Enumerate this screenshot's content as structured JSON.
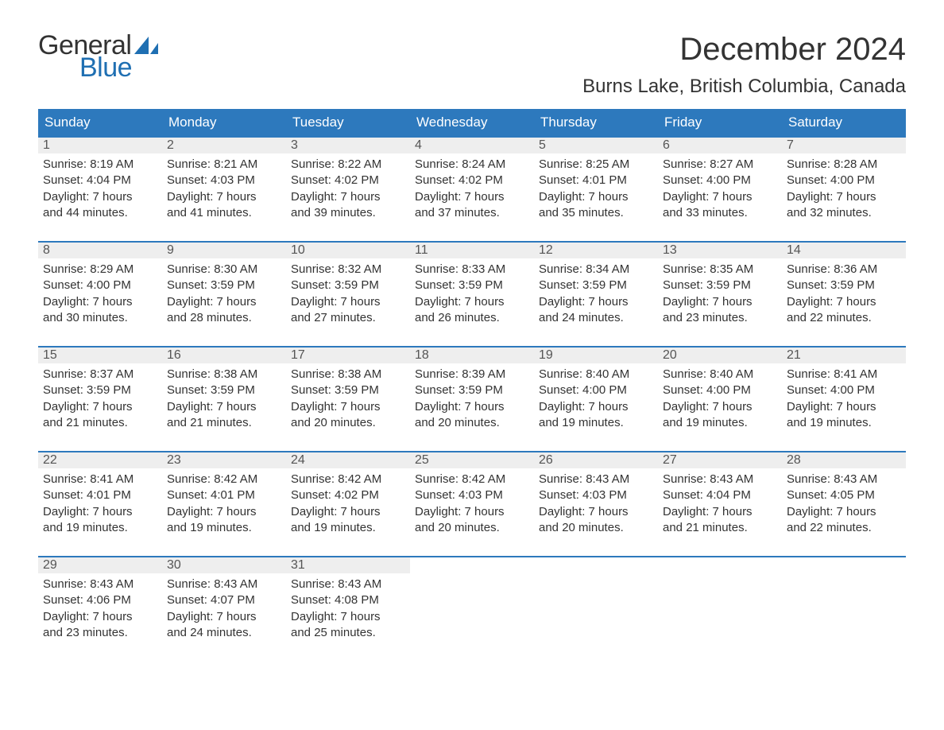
{
  "logo": {
    "word1": "General",
    "word2": "Blue",
    "text_color": "#333333",
    "accent_color": "#1f6fb2"
  },
  "title": "December 2024",
  "location": "Burns Lake, British Columbia, Canada",
  "header_bg": "#2d79bd",
  "header_fg": "#ffffff",
  "daynum_bg": "#eeeeee",
  "weekdays": [
    "Sunday",
    "Monday",
    "Tuesday",
    "Wednesday",
    "Thursday",
    "Friday",
    "Saturday"
  ],
  "weeks": [
    [
      {
        "n": "1",
        "sunrise": "8:19 AM",
        "sunset": "4:04 PM",
        "dh": "7",
        "dm": "44"
      },
      {
        "n": "2",
        "sunrise": "8:21 AM",
        "sunset": "4:03 PM",
        "dh": "7",
        "dm": "41"
      },
      {
        "n": "3",
        "sunrise": "8:22 AM",
        "sunset": "4:02 PM",
        "dh": "7",
        "dm": "39"
      },
      {
        "n": "4",
        "sunrise": "8:24 AM",
        "sunset": "4:02 PM",
        "dh": "7",
        "dm": "37"
      },
      {
        "n": "5",
        "sunrise": "8:25 AM",
        "sunset": "4:01 PM",
        "dh": "7",
        "dm": "35"
      },
      {
        "n": "6",
        "sunrise": "8:27 AM",
        "sunset": "4:00 PM",
        "dh": "7",
        "dm": "33"
      },
      {
        "n": "7",
        "sunrise": "8:28 AM",
        "sunset": "4:00 PM",
        "dh": "7",
        "dm": "32"
      }
    ],
    [
      {
        "n": "8",
        "sunrise": "8:29 AM",
        "sunset": "4:00 PM",
        "dh": "7",
        "dm": "30"
      },
      {
        "n": "9",
        "sunrise": "8:30 AM",
        "sunset": "3:59 PM",
        "dh": "7",
        "dm": "28"
      },
      {
        "n": "10",
        "sunrise": "8:32 AM",
        "sunset": "3:59 PM",
        "dh": "7",
        "dm": "27"
      },
      {
        "n": "11",
        "sunrise": "8:33 AM",
        "sunset": "3:59 PM",
        "dh": "7",
        "dm": "26"
      },
      {
        "n": "12",
        "sunrise": "8:34 AM",
        "sunset": "3:59 PM",
        "dh": "7",
        "dm": "24"
      },
      {
        "n": "13",
        "sunrise": "8:35 AM",
        "sunset": "3:59 PM",
        "dh": "7",
        "dm": "23"
      },
      {
        "n": "14",
        "sunrise": "8:36 AM",
        "sunset": "3:59 PM",
        "dh": "7",
        "dm": "22"
      }
    ],
    [
      {
        "n": "15",
        "sunrise": "8:37 AM",
        "sunset": "3:59 PM",
        "dh": "7",
        "dm": "21"
      },
      {
        "n": "16",
        "sunrise": "8:38 AM",
        "sunset": "3:59 PM",
        "dh": "7",
        "dm": "21"
      },
      {
        "n": "17",
        "sunrise": "8:38 AM",
        "sunset": "3:59 PM",
        "dh": "7",
        "dm": "20"
      },
      {
        "n": "18",
        "sunrise": "8:39 AM",
        "sunset": "3:59 PM",
        "dh": "7",
        "dm": "20"
      },
      {
        "n": "19",
        "sunrise": "8:40 AM",
        "sunset": "4:00 PM",
        "dh": "7",
        "dm": "19"
      },
      {
        "n": "20",
        "sunrise": "8:40 AM",
        "sunset": "4:00 PM",
        "dh": "7",
        "dm": "19"
      },
      {
        "n": "21",
        "sunrise": "8:41 AM",
        "sunset": "4:00 PM",
        "dh": "7",
        "dm": "19"
      }
    ],
    [
      {
        "n": "22",
        "sunrise": "8:41 AM",
        "sunset": "4:01 PM",
        "dh": "7",
        "dm": "19"
      },
      {
        "n": "23",
        "sunrise": "8:42 AM",
        "sunset": "4:01 PM",
        "dh": "7",
        "dm": "19"
      },
      {
        "n": "24",
        "sunrise": "8:42 AM",
        "sunset": "4:02 PM",
        "dh": "7",
        "dm": "19"
      },
      {
        "n": "25",
        "sunrise": "8:42 AM",
        "sunset": "4:03 PM",
        "dh": "7",
        "dm": "20"
      },
      {
        "n": "26",
        "sunrise": "8:43 AM",
        "sunset": "4:03 PM",
        "dh": "7",
        "dm": "20"
      },
      {
        "n": "27",
        "sunrise": "8:43 AM",
        "sunset": "4:04 PM",
        "dh": "7",
        "dm": "21"
      },
      {
        "n": "28",
        "sunrise": "8:43 AM",
        "sunset": "4:05 PM",
        "dh": "7",
        "dm": "22"
      }
    ],
    [
      {
        "n": "29",
        "sunrise": "8:43 AM",
        "sunset": "4:06 PM",
        "dh": "7",
        "dm": "23"
      },
      {
        "n": "30",
        "sunrise": "8:43 AM",
        "sunset": "4:07 PM",
        "dh": "7",
        "dm": "24"
      },
      {
        "n": "31",
        "sunrise": "8:43 AM",
        "sunset": "4:08 PM",
        "dh": "7",
        "dm": "25"
      },
      null,
      null,
      null,
      null
    ]
  ],
  "labels": {
    "sunrise": "Sunrise:",
    "sunset": "Sunset:",
    "daylight": "Daylight:",
    "hours": "hours",
    "and": "and",
    "minutes": "minutes."
  }
}
